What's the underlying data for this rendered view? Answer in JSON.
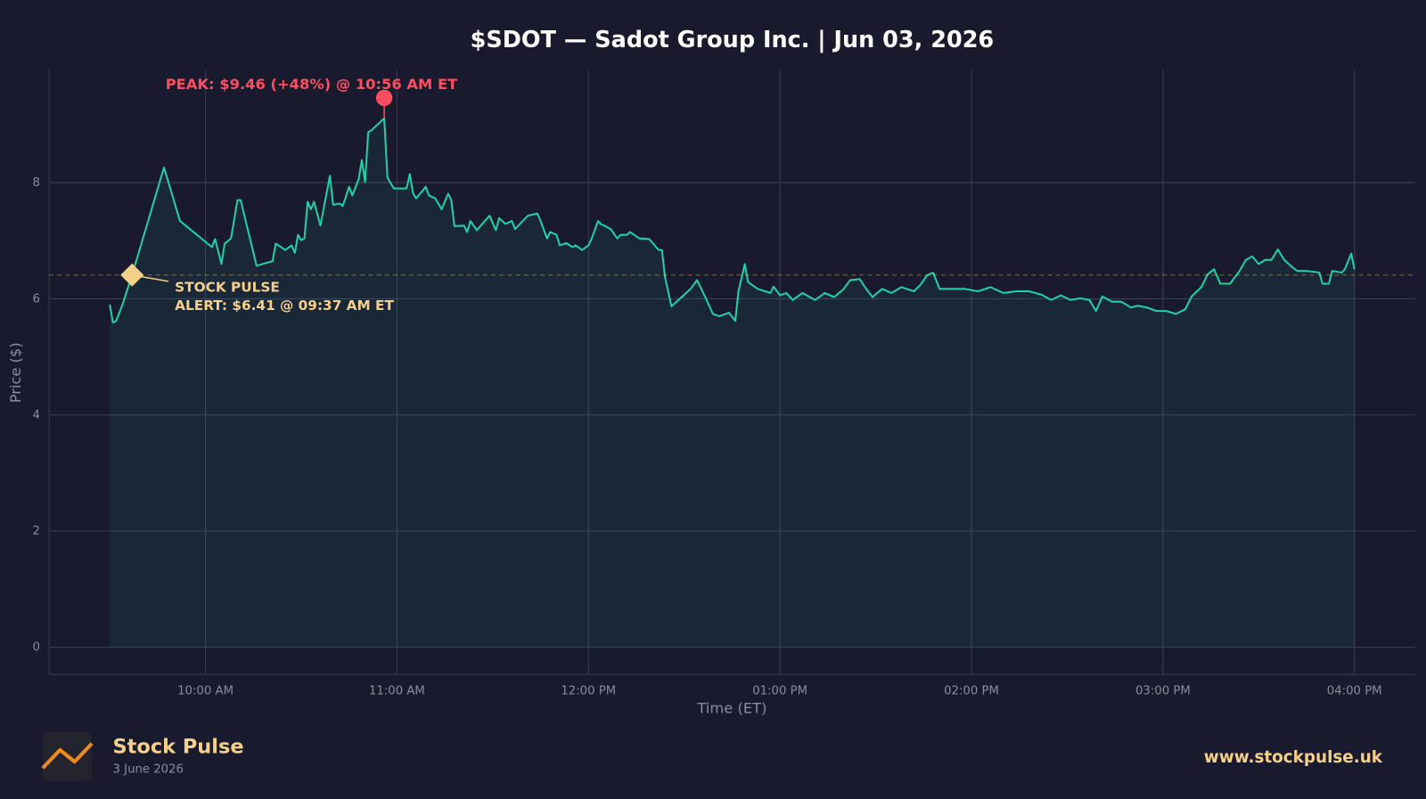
{
  "chart_data": {
    "type": "line",
    "title": "$SDOT — Sadot Group Inc.  |  Jun 03, 2026",
    "xlabel": "Time (ET)",
    "ylabel": "Price ($)",
    "color": "#1fd1a5",
    "grid": true,
    "xlim": [
      "09:11 AM",
      "04:19 PM"
    ],
    "xticks": [
      "10:00 AM",
      "11:00 AM",
      "12:00 PM",
      "01:00 PM",
      "02:00 PM",
      "03:00 PM",
      "04:00 PM"
    ],
    "ylim": [
      -0.47,
      9.94
    ],
    "yticks": [
      0,
      2,
      4,
      6,
      8
    ],
    "x": [
      "09:30 AM",
      "09:31 AM",
      "09:32 AM",
      "09:34 AM",
      "09:37 AM",
      "09:41 AM",
      "09:47 AM",
      "09:52 AM",
      "10:02 AM",
      "10:03 AM",
      "10:05 AM",
      "10:06 AM",
      "10:08 AM",
      "10:10 AM",
      "10:11 AM",
      "10:16 AM",
      "10:21 AM",
      "10:22 AM",
      "10:25 AM",
      "10:27 AM",
      "10:28 AM",
      "10:29 AM",
      "10:30 AM",
      "10:31 AM",
      "10:32 AM",
      "10:33 AM",
      "10:34 AM",
      "10:36 AM",
      "10:39 AM",
      "10:40 AM",
      "10:42 AM",
      "10:43 AM",
      "10:45 AM",
      "10:46 AM",
      "10:48 AM",
      "10:49 AM",
      "10:50 AM",
      "10:51 AM",
      "10:52 AM",
      "10:56 AM",
      "10:57 AM",
      "10:59 AM",
      "11:03 AM",
      "11:04 AM",
      "11:05 AM",
      "11:06 AM",
      "11:08 AM",
      "11:09 AM",
      "11:10 AM",
      "11:12 AM",
      "11:14 AM",
      "11:16 AM",
      "11:17 AM",
      "11:18 AM",
      "11:21 AM",
      "11:22 AM",
      "11:23 AM",
      "11:25 AM",
      "11:27 AM",
      "11:29 AM",
      "11:31 AM",
      "11:32 AM",
      "11:34 AM",
      "11:36 AM",
      "11:37 AM",
      "11:39 AM",
      "11:41 AM",
      "11:44 AM",
      "11:45 AM",
      "11:47 AM",
      "11:48 AM",
      "11:50 AM",
      "11:51 AM",
      "11:53 AM",
      "11:55 AM",
      "11:56 AM",
      "11:58 AM",
      "12:00 PM",
      "12:01 PM",
      "12:03 PM",
      "12:04 PM",
      "12:05 PM",
      "12:07 PM",
      "12:09 PM",
      "12:10 PM",
      "12:12 PM",
      "12:13 PM",
      "12:16 PM",
      "12:19 PM",
      "12:22 PM",
      "12:23 PM",
      "12:24 PM",
      "12:26 PM",
      "12:32 PM",
      "12:34 PM",
      "12:36 PM",
      "12:39 PM",
      "12:41 PM",
      "12:44 PM",
      "12:46 PM",
      "12:47 PM",
      "12:49 PM",
      "12:50 PM",
      "12:53 PM",
      "12:57 PM",
      "12:58 PM",
      "01:00 PM",
      "01:02 PM",
      "01:04 PM",
      "01:07 PM",
      "01:11 PM",
      "01:14 PM",
      "01:17 PM",
      "01:20 PM",
      "01:22 PM",
      "01:25 PM",
      "01:27 PM",
      "01:29 PM",
      "01:32 PM",
      "01:35 PM",
      "01:38 PM",
      "01:42 PM",
      "01:44 PM",
      "01:46 PM",
      "01:48 PM",
      "01:50 PM",
      "01:54 PM",
      "01:58 PM",
      "02:02 PM",
      "02:06 PM",
      "02:10 PM",
      "02:14 PM",
      "02:18 PM",
      "02:22 PM",
      "02:25 PM",
      "02:28 PM",
      "02:31 PM",
      "02:34 PM",
      "02:37 PM",
      "02:39 PM",
      "02:41 PM",
      "02:44 PM",
      "02:47 PM",
      "02:50 PM",
      "02:52 PM",
      "02:55 PM",
      "02:58 PM",
      "03:01 PM",
      "03:04 PM",
      "03:07 PM",
      "03:09 PM",
      "03:12 PM",
      "03:14 PM",
      "03:16 PM",
      "03:18 PM",
      "03:21 PM",
      "03:24 PM",
      "03:26 PM",
      "03:28 PM",
      "03:30 PM",
      "03:32 PM",
      "03:34 PM",
      "03:36 PM",
      "03:38 PM",
      "03:40 PM",
      "03:42 PM",
      "03:45 PM",
      "03:49 PM",
      "03:50 PM",
      "03:52 PM",
      "03:53 PM",
      "03:56 PM",
      "03:57 PM",
      "03:59 PM",
      "04:00 PM"
    ],
    "values": [
      5.9,
      5.59,
      5.62,
      5.9,
      6.41,
      7.15,
      8.26,
      7.34,
      6.89,
      7.03,
      6.6,
      6.95,
      7.04,
      7.7,
      7.7,
      6.57,
      6.65,
      6.95,
      6.84,
      6.92,
      6.79,
      7.1,
      7.01,
      7.04,
      7.67,
      7.54,
      7.67,
      7.26,
      8.12,
      7.62,
      7.64,
      7.6,
      7.93,
      7.78,
      8.06,
      8.39,
      8.01,
      8.87,
      8.9,
      9.11,
      8.09,
      7.9,
      7.9,
      8.15,
      7.82,
      7.73,
      7.86,
      7.93,
      7.78,
      7.73,
      7.54,
      7.81,
      7.7,
      7.25,
      7.26,
      7.15,
      7.34,
      7.18,
      7.31,
      7.43,
      7.18,
      7.39,
      7.29,
      7.34,
      7.2,
      7.32,
      7.43,
      7.47,
      7.34,
      7.04,
      7.15,
      7.1,
      6.92,
      6.96,
      6.89,
      6.92,
      6.84,
      6.92,
      7.04,
      7.34,
      7.28,
      7.26,
      7.2,
      7.04,
      7.1,
      7.1,
      7.15,
      7.04,
      7.03,
      6.84,
      6.84,
      6.37,
      5.87,
      6.17,
      6.32,
      6.1,
      5.74,
      5.7,
      5.76,
      5.62,
      6.13,
      6.6,
      6.29,
      6.17,
      6.1,
      6.21,
      6.06,
      6.1,
      5.98,
      6.1,
      5.98,
      6.1,
      6.03,
      6.17,
      6.32,
      6.34,
      6.17,
      6.03,
      6.17,
      6.1,
      6.2,
      6.13,
      6.24,
      6.4,
      6.45,
      6.17,
      6.17,
      6.17,
      6.13,
      6.2,
      6.1,
      6.13,
      6.13,
      6.07,
      5.98,
      6.06,
      5.98,
      6.01,
      5.98,
      5.79,
      6.04,
      5.95,
      5.95,
      5.85,
      5.88,
      5.85,
      5.79,
      5.79,
      5.74,
      5.82,
      6.04,
      6.2,
      6.42,
      6.51,
      6.26,
      6.26,
      6.48,
      6.67,
      6.73,
      6.6,
      6.67,
      6.67,
      6.85,
      6.67,
      6.57,
      6.48,
      6.48,
      6.45,
      6.26,
      6.26,
      6.48,
      6.45,
      6.51,
      6.78,
      6.51
    ],
    "peak": {
      "label": "PEAK: $9.46 (+48%) @ 10:56 AM ET",
      "x": "10:56 AM",
      "value": 9.46,
      "color": "#ff4d5e"
    },
    "alert": {
      "lines": [
        "STOCK PULSE",
        "ALERT: $6.41 @ 09:37 AM ET"
      ],
      "x": "09:37 AM",
      "value": 6.41,
      "color": "#f5d08a"
    }
  },
  "footer": {
    "brand": "Stock Pulse",
    "date": "3 June 2026",
    "url": "www.stockpulse.uk"
  }
}
